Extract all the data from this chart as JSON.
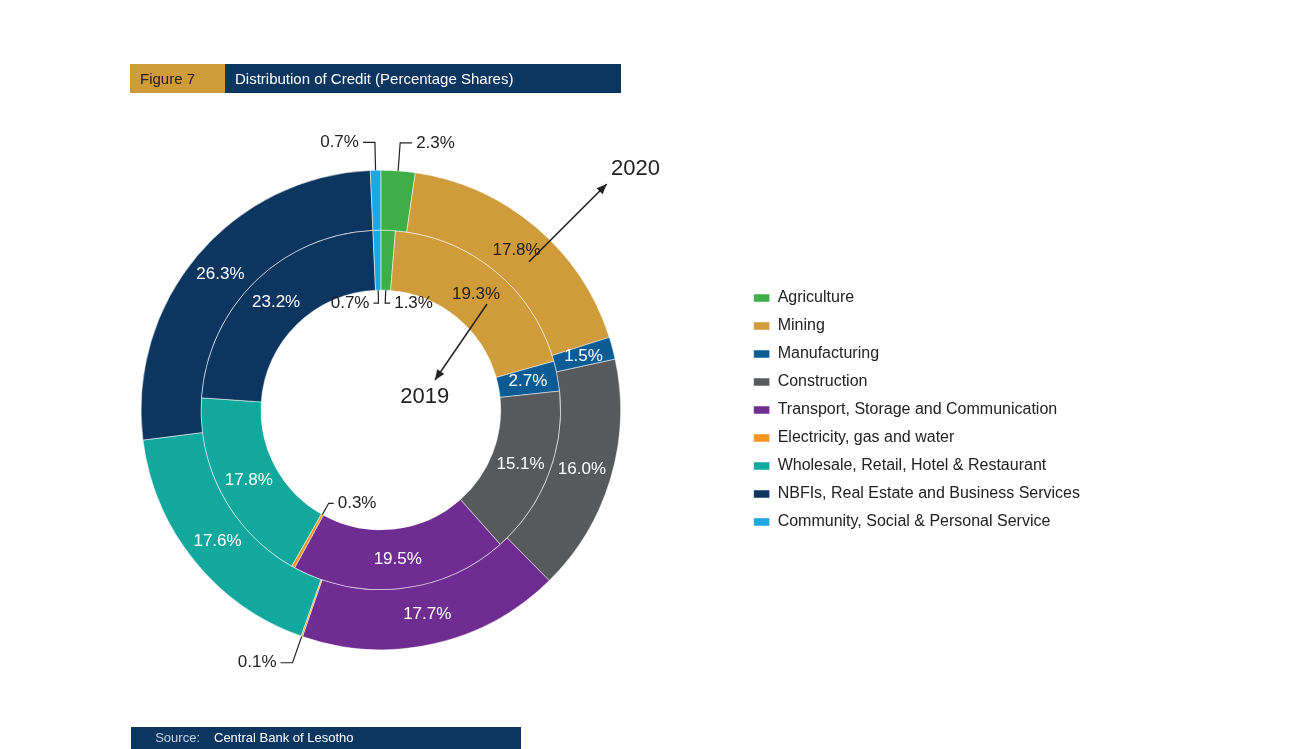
{
  "chart_data": {
    "type": "donut",
    "title": "Distribution of Credit (Percentage Shares)",
    "categories": [
      "Agriculture",
      "Mining",
      "Manufacturing",
      "Construction",
      "Transport, Storage and Communication",
      "Electricity, gas and water",
      "Wholesale, Retail, Hotel & Restaurant",
      "NBFIs, Real Estate and Business Services",
      "Community, Social & Personal Service"
    ],
    "colors": [
      "#3fae49",
      "#d09b3a",
      "#0b5c94",
      "#58595b",
      "#6f2c91",
      "#f7941d",
      "#13a89e",
      "#0c3660",
      "#1ea7e0"
    ],
    "series": [
      {
        "name": "2020",
        "values": [
          2.3,
          17.8,
          1.5,
          16.0,
          17.7,
          0.1,
          17.6,
          26.3,
          0.7
        ],
        "value_labels": [
          "2.3%",
          "17.8%",
          "1.5%",
          "16.0%",
          "17.7%",
          "0.1%",
          "17.6%",
          "26.3%",
          "0.7%"
        ]
      },
      {
        "name": "2019",
        "values": [
          1.3,
          19.3,
          2.7,
          15.1,
          19.5,
          0.3,
          17.8,
          23.2,
          0.7
        ],
        "value_labels": [
          "1.3%",
          "19.3%",
          "2.7%",
          "15.1%",
          "19.5%",
          "0.3%",
          "17.8%",
          "23.2%",
          "0.7%"
        ]
      }
    ],
    "legend": "right",
    "annotations": [
      "Figure 7",
      "Source:",
      "Central Bank of Lesotho"
    ]
  }
}
